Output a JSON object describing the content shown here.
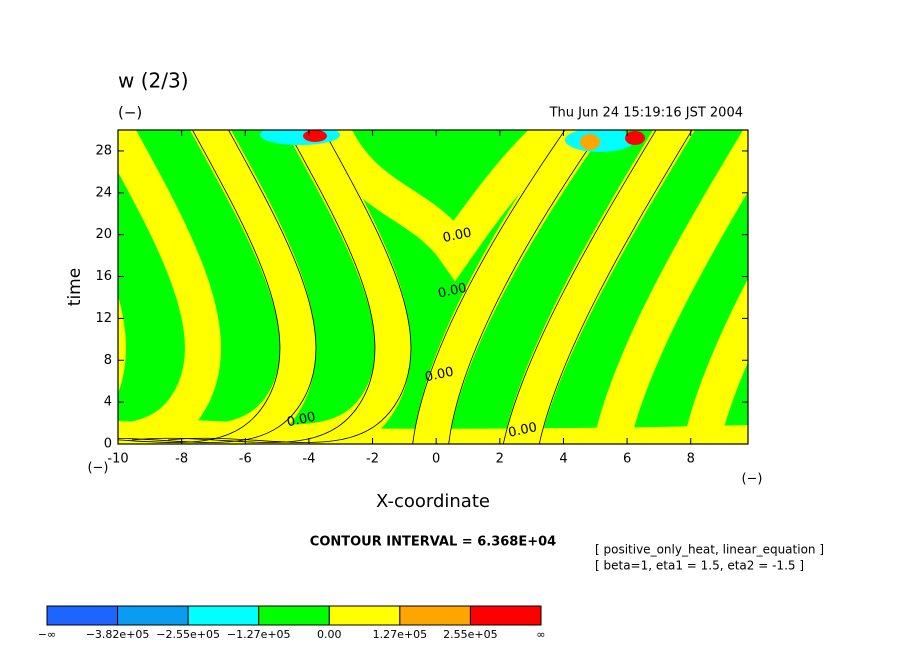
{
  "chart_data": {
    "type": "contour",
    "title": "w (2/3)",
    "title_unit": "(−)",
    "timestamp": "Thu Jun 24 15:19:16 JST 2004",
    "x_label": "X-coordinate",
    "x_unit": "(−)",
    "y_label": "time",
    "y_unit": "(−)",
    "xlim": [
      -10,
      9.8
    ],
    "xticks": [
      -10,
      -8,
      -6,
      -4,
      -2,
      0,
      2,
      4,
      6,
      8
    ],
    "ylim": [
      0,
      30
    ],
    "yticks": [
      0,
      4,
      8,
      12,
      16,
      20,
      24,
      28
    ],
    "contour_labels": [
      {
        "value": 0,
        "label": "0.00",
        "x": 0.66,
        "y": 19.9
      },
      {
        "value": 0,
        "label": "0.00",
        "x": 0.51,
        "y": 14.6
      },
      {
        "value": 0,
        "label": "0.00",
        "x": 0.1,
        "y": 6.6
      },
      {
        "value": 0,
        "label": "0.00",
        "x": -4.24,
        "y": 2.3
      },
      {
        "value": 0,
        "label": "0.00",
        "x": 2.72,
        "y": 1.3
      }
    ],
    "contour_interval": "CONTOUR INTERVAL = 6.368E+04",
    "notes": [
      "[ positive_only_heat, linear_equation ]",
      "[ beta=1, eta1 = 1.5, eta2 = -1.5 ]"
    ],
    "colorbar": {
      "low_label": "−∞",
      "high_label": "∞",
      "levels": [
        {
          "value": -382000,
          "label": "−3.82e+05"
        },
        {
          "value": -255000,
          "label": "−2.55e+05"
        },
        {
          "value": -127000,
          "label": "−1.27e+05"
        },
        {
          "value": 0,
          "label": "0.00"
        },
        {
          "value": 127000,
          "label": "1.27e+05"
        },
        {
          "value": 255000,
          "label": "2.55e+05"
        }
      ],
      "colors": [
        "#1e64ff",
        "#0a9cf0",
        "#00ffff",
        "#00ff00",
        "#ffff00",
        "#ffa500",
        "#ff0000"
      ]
    }
  }
}
